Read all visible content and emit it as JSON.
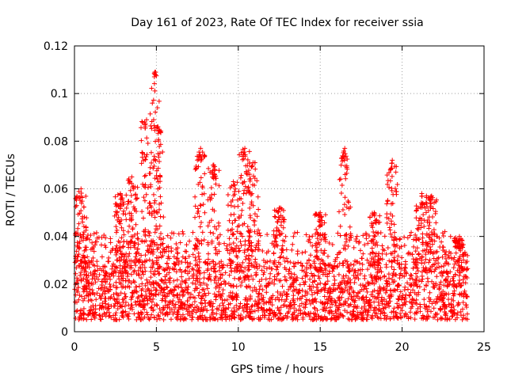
{
  "chart_data": {
    "type": "scatter",
    "title": "Day 161 of 2023, Rate Of TEC Index for receiver ssia",
    "xlabel": "GPS time / hours",
    "ylabel": "ROTI / TECUs",
    "xlim": [
      0,
      25
    ],
    "ylim": [
      0,
      0.12
    ],
    "xticks": [
      "0",
      "5",
      "10",
      "15",
      "20",
      "25"
    ],
    "yticks": [
      "0",
      "0.02",
      "0.04",
      "0.06",
      "0.08",
      "0.1",
      "0.12"
    ],
    "grid": true,
    "marker": "+",
    "marker_color": "#ff0000",
    "series": [
      {
        "name": "ROTI",
        "x_range_hours": [
          0,
          24
        ],
        "baseline_range": [
          0.005,
          0.03
        ],
        "typical_value": 0.016,
        "bursts": [
          {
            "x": 0.4,
            "peak": 0.06
          },
          {
            "x": 2.8,
            "peak": 0.058
          },
          {
            "x": 3.5,
            "peak": 0.065
          },
          {
            "x": 4.4,
            "peak": 0.089
          },
          {
            "x": 4.9,
            "peak": 0.109
          },
          {
            "x": 5.1,
            "peak": 0.086
          },
          {
            "x": 7.7,
            "peak": 0.077
          },
          {
            "x": 8.5,
            "peak": 0.07
          },
          {
            "x": 9.7,
            "peak": 0.063
          },
          {
            "x": 10.4,
            "peak": 0.077
          },
          {
            "x": 10.9,
            "peak": 0.071
          },
          {
            "x": 12.5,
            "peak": 0.052
          },
          {
            "x": 15.0,
            "peak": 0.05
          },
          {
            "x": 16.5,
            "peak": 0.077
          },
          {
            "x": 18.3,
            "peak": 0.05
          },
          {
            "x": 19.4,
            "peak": 0.072
          },
          {
            "x": 21.2,
            "peak": 0.058
          },
          {
            "x": 21.8,
            "peak": 0.057
          },
          {
            "x": 23.5,
            "peak": 0.04
          }
        ]
      }
    ]
  }
}
